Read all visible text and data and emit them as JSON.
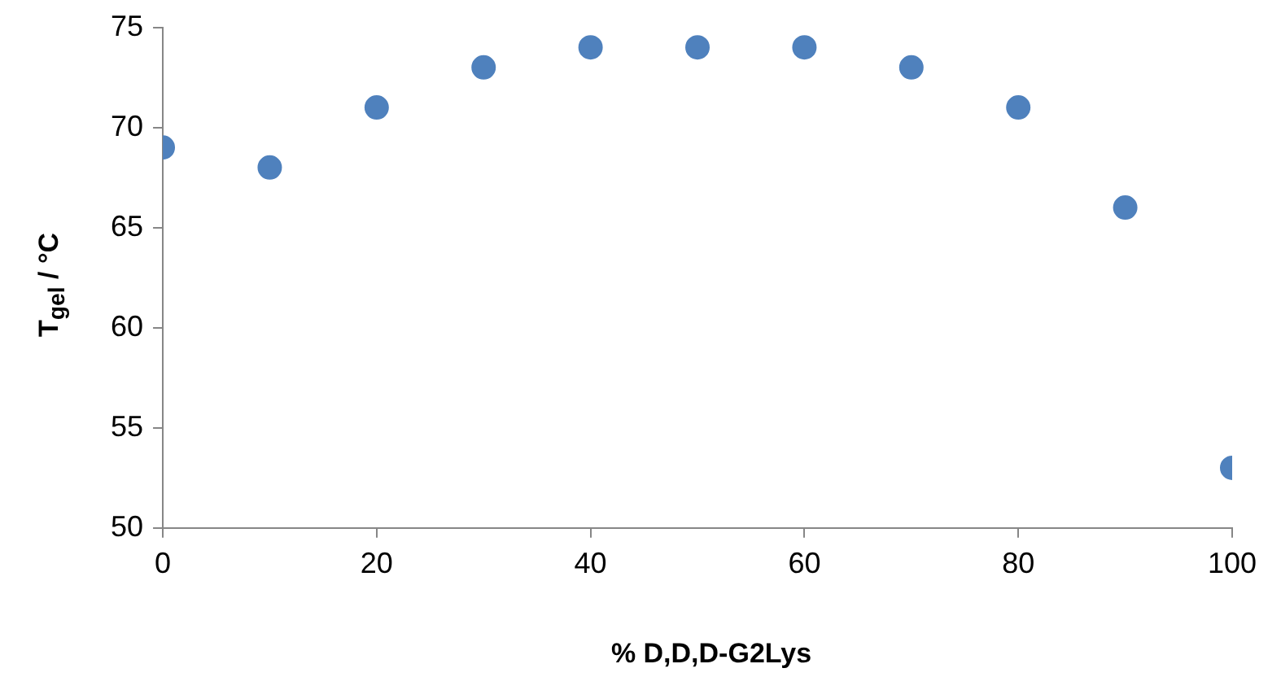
{
  "chart_data": {
    "type": "scatter",
    "xlabel": "% D,D,D-G2Lys",
    "ylabel": "T$_{gel}$ / °C",
    "x": [
      0,
      10,
      20,
      30,
      40,
      50,
      60,
      70,
      80,
      90,
      100
    ],
    "series": [
      {
        "color": "#4f81bd",
        "values": [
          69,
          68,
          71,
          73,
          74,
          74,
          74,
          73,
          71,
          66,
          53
        ]
      }
    ],
    "xlim": [
      0,
      100
    ],
    "xticks": [
      0,
      20,
      40,
      60,
      80,
      100
    ],
    "ylim": [
      50,
      75
    ],
    "yticks": [
      50,
      55,
      60,
      65,
      70,
      75
    ],
    "marker": "circle",
    "legend": false,
    "grid": false
  }
}
